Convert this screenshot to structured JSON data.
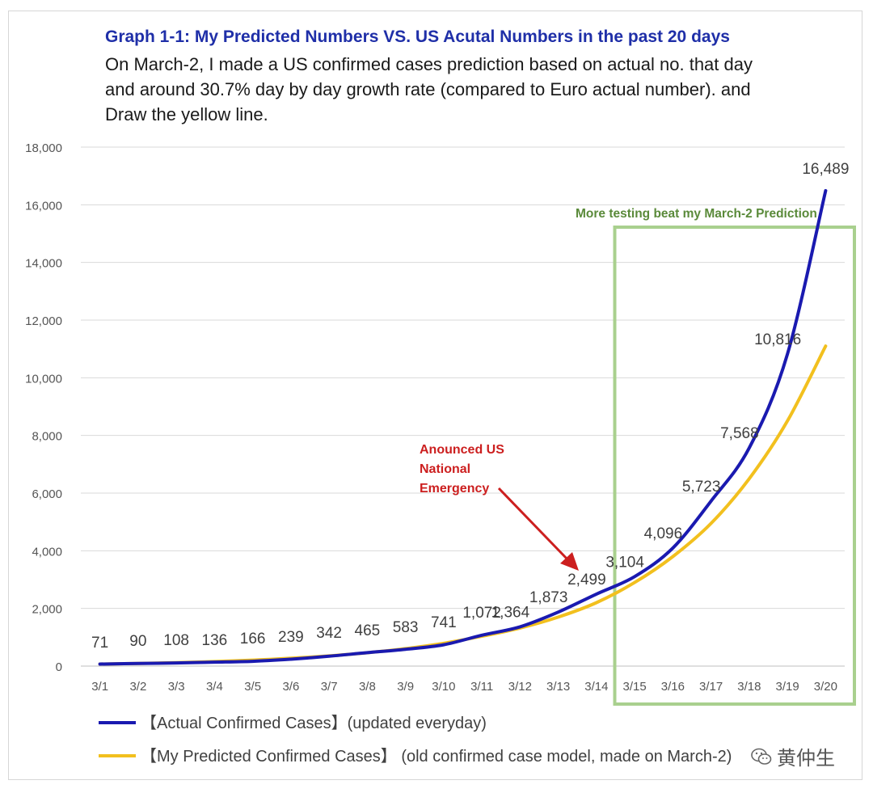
{
  "chart_data": {
    "type": "line",
    "title": "Graph 1-1: My Predicted Numbers VS. US Acutal Numbers in the past 20 days",
    "subtitle": "On March-2, I made a US confirmed cases prediction based on actual no. that day and around 30.7% day by day growth rate (compared to Euro actual number). and Draw the yellow line.",
    "categories": [
      "3/1",
      "3/2",
      "3/3",
      "3/4",
      "3/5",
      "3/6",
      "3/7",
      "3/8",
      "3/9",
      "3/10",
      "3/11",
      "3/12",
      "3/13",
      "3/14",
      "3/15",
      "3/16",
      "3/17",
      "3/18",
      "3/19",
      "3/20"
    ],
    "ylim": [
      0,
      18000
    ],
    "yticks": [
      0,
      2000,
      4000,
      6000,
      8000,
      10000,
      12000,
      14000,
      16000,
      18000
    ],
    "ytick_labels": [
      "0",
      "2,000",
      "4,000",
      "6,000",
      "8,000",
      "10,000",
      "12,000",
      "14,000",
      "16,000",
      "18,000"
    ],
    "grid": true,
    "series": [
      {
        "name": "【Actual Confirmed Cases】(updated everyday)",
        "color": "#1a1ab0",
        "values": [
          71,
          90,
          108,
          136,
          166,
          239,
          342,
          465,
          583,
          741,
          1072,
          1364,
          1873,
          2499,
          3104,
          4096,
          5723,
          7568,
          10816,
          16489
        ],
        "labels": [
          "71",
          "90",
          "108",
          "136",
          "166",
          "239",
          "342",
          "465",
          "583",
          "741",
          "1,072",
          "1,364",
          "1,873",
          "2,499",
          "3,104",
          "4,096",
          "5,723",
          "7,568",
          "10,816",
          "16,489"
        ]
      },
      {
        "name": "【My Predicted Confirmed Cases】  (old confirmed case model, made on March-2)",
        "color": "#f2c01e",
        "values": [
          71,
          93,
          121,
          158,
          207,
          271,
          354,
          463,
          605,
          791,
          1034,
          1320,
          1700,
          2200,
          2900,
          3800,
          4950,
          6500,
          8500,
          11100
        ]
      }
    ],
    "annotations": [
      {
        "id": "emergency",
        "text_lines": [
          "Anounced US",
          "National",
          "Emergency"
        ],
        "color": "#cc1f1f",
        "points_to": "3/14"
      },
      {
        "id": "testing",
        "text": "More testing beat my March-2 Prediction",
        "color": "#5a8a3a",
        "box_from": "3/15",
        "box_to": "3/20",
        "box_color": "#a9d08e"
      }
    ],
    "legend_position": "bottom-left"
  },
  "watermark": {
    "text": "黄仲生",
    "icon": "wechat-icon"
  }
}
